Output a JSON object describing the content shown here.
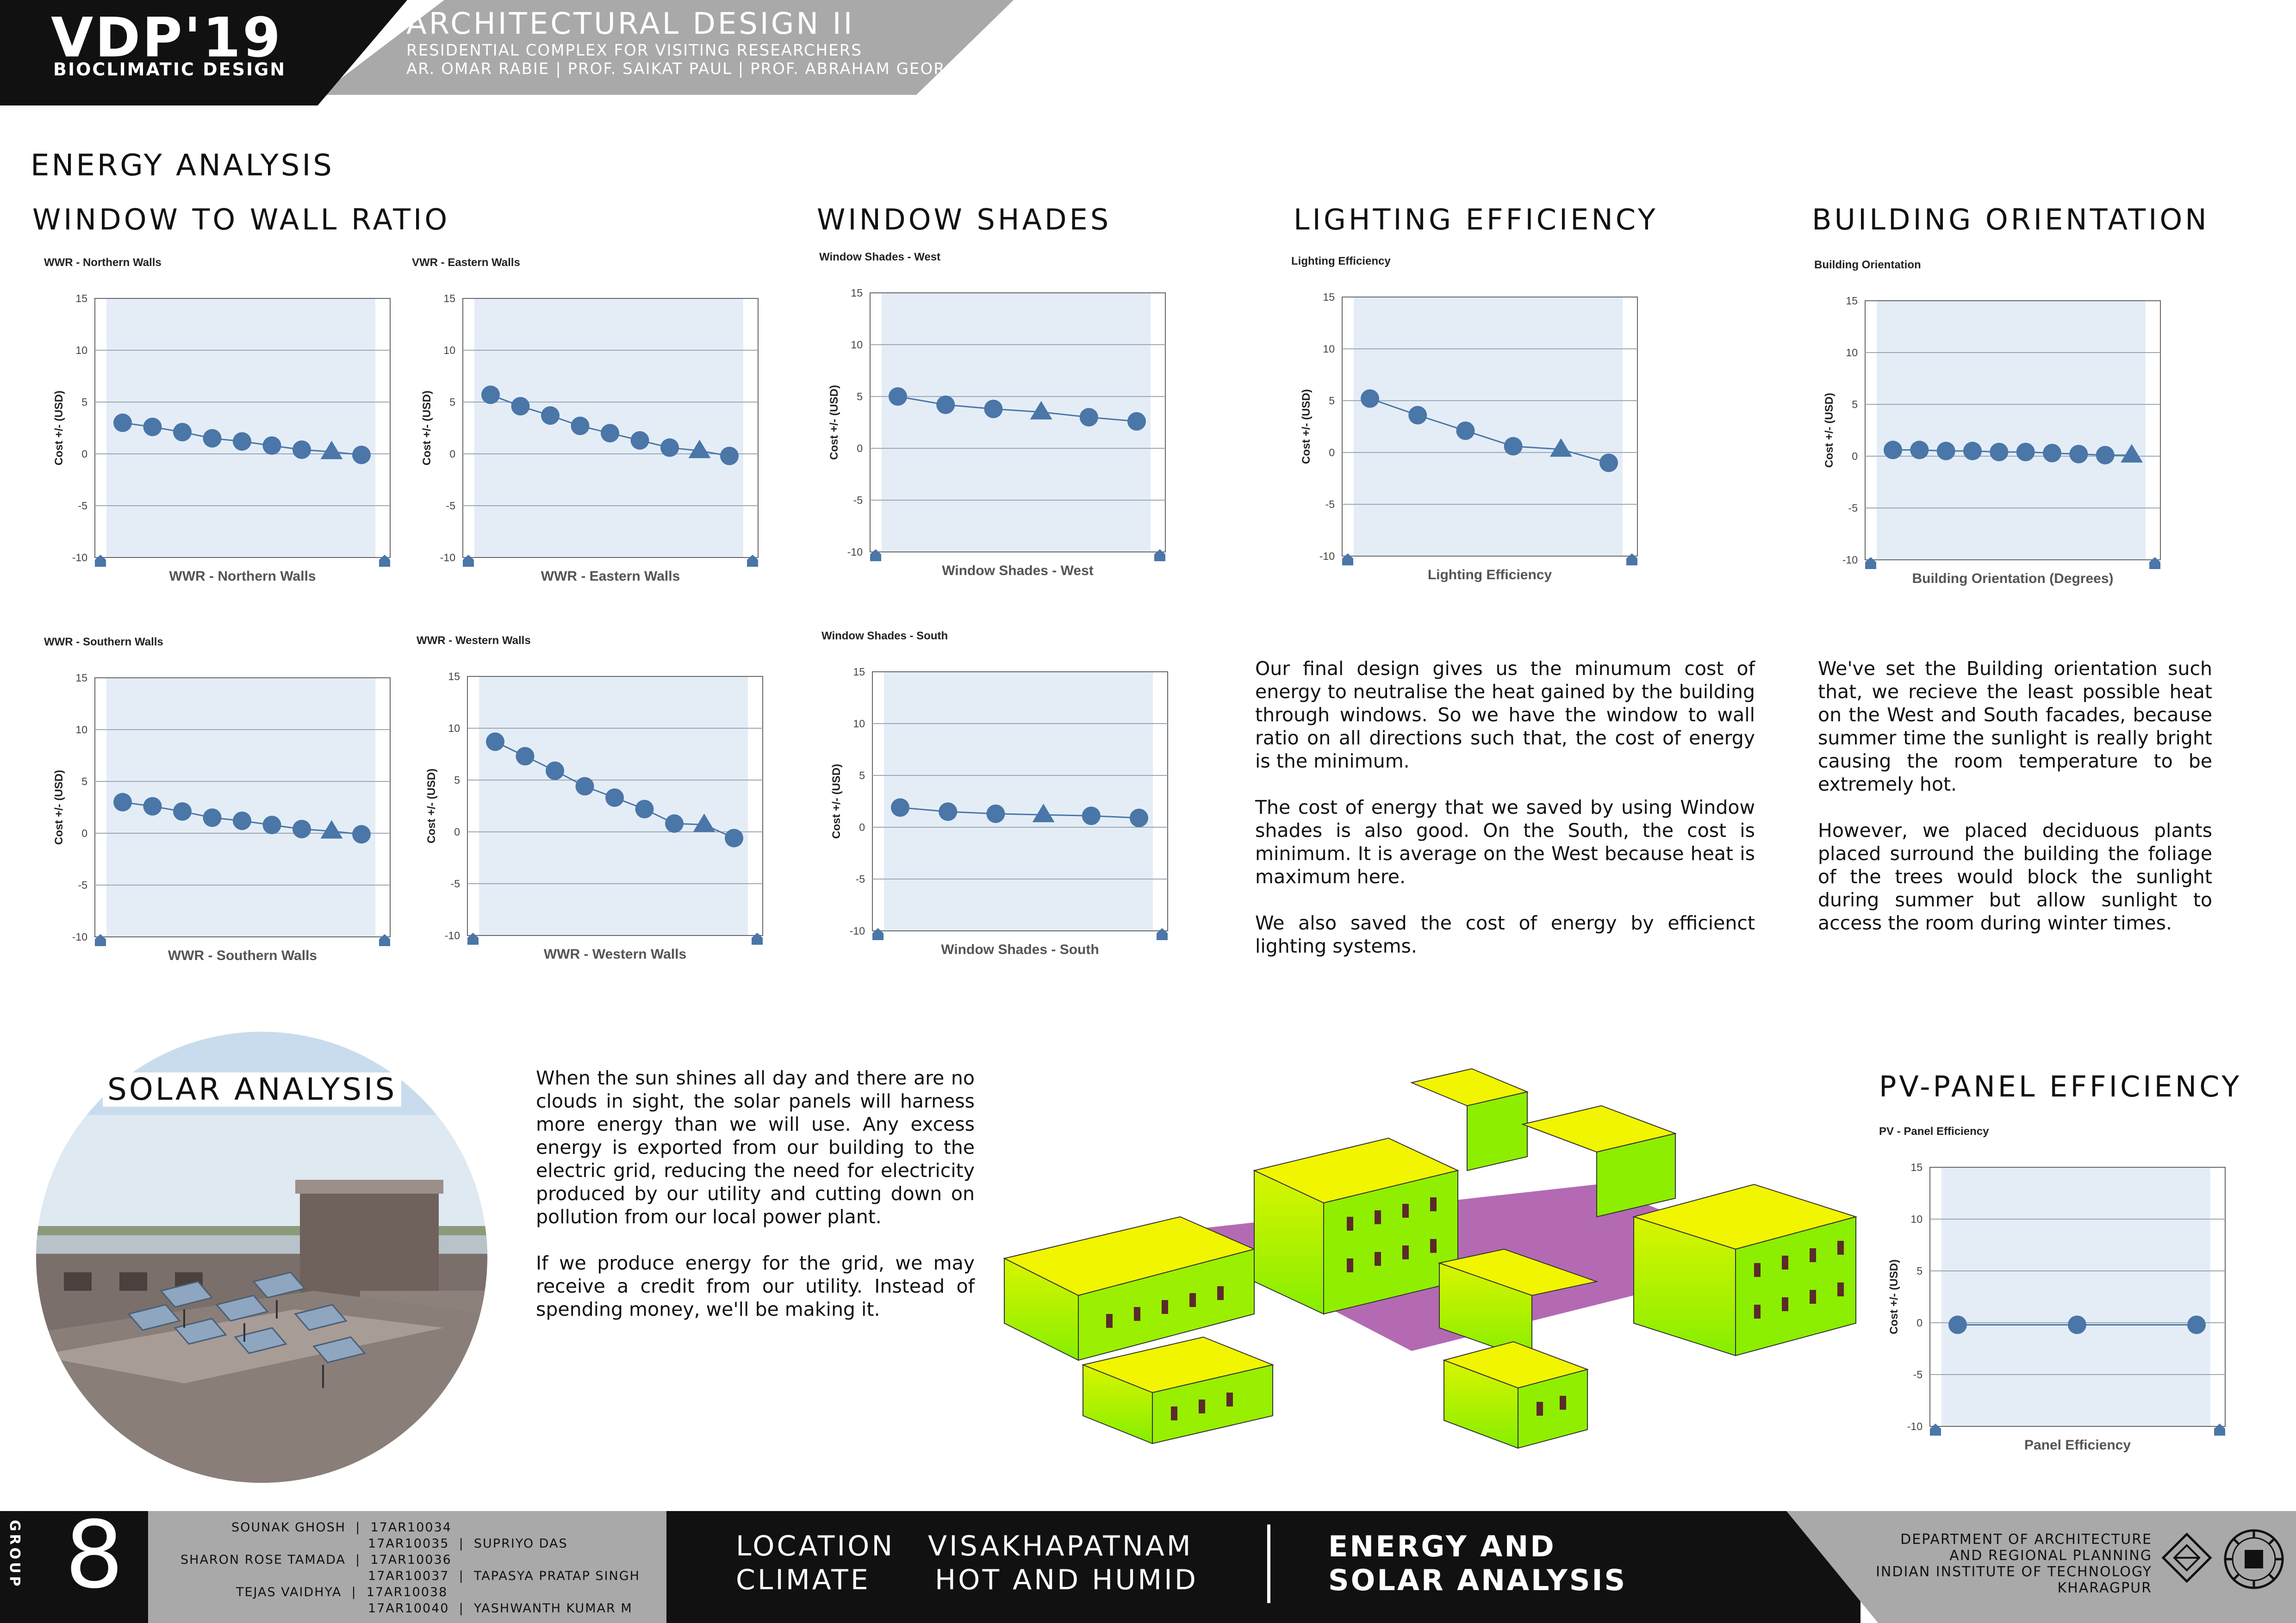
{
  "header": {
    "logo": "VDP'19",
    "logo_sub": "BIOCLIMATIC DESIGN",
    "title": "ARCHITECTURAL DESIGN II",
    "subtitle": "RESIDENTIAL COMPLEX FOR VISITING RESEARCHERS",
    "faculty": "AR. OMAR RABIE | PROF. SAIKAT PAUL | PROF. ABRAHAM GEORGE"
  },
  "energy": {
    "heading": "ENERGY ANALYSIS",
    "wwr_heading": "WINDOW TO WALL RATIO",
    "shades_heading": "WINDOW SHADES",
    "lighting_heading": "LIGHTING EFFICIENCY",
    "orientation_heading": "BUILDING ORIENTATION",
    "lighting_text": [
      "Our final design gives us the minumum cost of energy to neutralise the heat gained by the building through windows. So we have  the window to wall ratio on all directions such that, the cost of energy is the minimum.",
      "The cost of energy that we saved by using Window shades is also good. On the South, the cost is minimum. It is average on the West because heat is maximum here.",
      "We also saved the cost of energy by efficienct lighting systems."
    ],
    "orientation_text": [
      "We've set the Building orientation such that, we recieve the least possible heat on the West and South facades, because summer time the sunlight is really bright causing the room temperature to be extremely hot.",
      "However, we placed deciduous plants placed surround the building the foliage of the trees would block the sunlight during summer but allow sunlight to access the room during winter times."
    ]
  },
  "solar": {
    "heading": "SOLAR ANALYSIS",
    "text": [
      "When the sun shines all day and there are no clouds in sight, the solar panels will harness more energy than we will use. Any excess energy is exported from our building to the electric grid, reducing the need for electricity produced by our utility and cutting down on pollution from our local power plant.",
      "If we produce energy for the grid, we may receive a credit from our utility. Instead of spending money, we'll be making it."
    ],
    "pv_heading": "PV-PANEL EFFICIENCY"
  },
  "chart_data": [
    {
      "id": "wwr-n",
      "type": "scatter",
      "title": "WWR - Northern Walls",
      "xlabel": "WWR - Northern Walls",
      "ylabel": "Cost +/- (USD)",
      "ylim": [
        -10,
        15
      ],
      "yticks": [
        15,
        10,
        5,
        0,
        -5,
        -10
      ],
      "grid": true,
      "values": [
        3.0,
        2.6,
        2.1,
        1.5,
        1.2,
        0.8,
        0.4,
        0.2,
        -0.1
      ],
      "marker_last": "triangle",
      "triangle_index": 7
    },
    {
      "id": "wwr-e",
      "type": "scatter",
      "title": "VWR - Eastern Walls",
      "xlabel": "WWR - Eastern Walls",
      "ylabel": "Cost +/- (USD)",
      "ylim": [
        -10,
        15
      ],
      "yticks": [
        15,
        10,
        5,
        0,
        -5,
        -10
      ],
      "grid": true,
      "values": [
        5.7,
        4.6,
        3.7,
        2.7,
        2.0,
        1.3,
        0.6,
        0.3,
        -0.2
      ],
      "triangle_index": 7
    },
    {
      "id": "ws-w",
      "type": "scatter",
      "title": "Window Shades - West",
      "xlabel": "Window Shades - West",
      "ylabel": "Cost +/- (USD)",
      "ylim": [
        -10,
        15
      ],
      "yticks": [
        15,
        10,
        5,
        0,
        -5,
        -10
      ],
      "grid": true,
      "values": [
        5.0,
        4.2,
        3.8,
        3.5,
        3.0,
        2.6
      ],
      "triangle_index": 3
    },
    {
      "id": "light",
      "type": "scatter",
      "title": "Lighting Efficiency",
      "xlabel": "Lighting Efficiency",
      "ylabel": "Cost +/- (USD)",
      "ylim": [
        -10,
        15
      ],
      "yticks": [
        15,
        10,
        5,
        0,
        -5,
        -10
      ],
      "grid": true,
      "values": [
        5.2,
        3.6,
        2.1,
        0.6,
        0.3,
        -1.0
      ],
      "triangle_index": 4
    },
    {
      "id": "orient",
      "type": "scatter",
      "title": "Building Orientation",
      "xlabel": "Building Orientation (Degrees)",
      "ylabel": "Cost +/- (USD)",
      "ylim": [
        -10,
        15
      ],
      "yticks": [
        15,
        10,
        5,
        0,
        -5,
        -10
      ],
      "grid": true,
      "values": [
        0.6,
        0.6,
        0.5,
        0.5,
        0.4,
        0.4,
        0.3,
        0.2,
        0.1,
        0.1
      ],
      "triangle_index": 9
    },
    {
      "id": "wwr-s",
      "type": "scatter",
      "title": "WWR - Southern Walls",
      "xlabel": "WWR - Southern Walls",
      "ylabel": "Cost +/- (USD)",
      "ylim": [
        -10,
        15
      ],
      "yticks": [
        15,
        10,
        5,
        0,
        -5,
        -10
      ],
      "grid": true,
      "values": [
        3.0,
        2.6,
        2.1,
        1.5,
        1.2,
        0.8,
        0.4,
        0.2,
        -0.1
      ],
      "triangle_index": 7
    },
    {
      "id": "wwr-w",
      "type": "scatter",
      "title": "WWR - Western Walls",
      "xlabel": "WWR - Western Walls",
      "ylabel": "Cost +/- (USD)",
      "ylim": [
        -10,
        15
      ],
      "yticks": [
        15,
        10,
        5,
        0,
        -5,
        -10
      ],
      "grid": true,
      "values": [
        8.7,
        7.3,
        5.9,
        4.4,
        3.3,
        2.2,
        0.8,
        0.7,
        -0.6
      ],
      "triangle_index": 7
    },
    {
      "id": "ws-s",
      "type": "scatter",
      "title": "Window Shades - South",
      "xlabel": "Window Shades - South",
      "ylabel": "Cost +/- (USD)",
      "ylim": [
        -10,
        15
      ],
      "yticks": [
        15,
        10,
        5,
        0,
        -5,
        -10
      ],
      "grid": true,
      "values": [
        1.9,
        1.5,
        1.3,
        1.2,
        1.1,
        0.9
      ],
      "triangle_index": 3
    },
    {
      "id": "pv",
      "type": "scatter",
      "title": "PV - Panel Efficiency",
      "xlabel": "Panel Efficiency",
      "ylabel": "Cost +/- (USD)",
      "ylim": [
        -10,
        15
      ],
      "yticks": [
        15,
        10,
        5,
        0,
        -5,
        -10
      ],
      "grid": true,
      "values": [
        -0.2,
        -0.2,
        -0.2
      ],
      "triangle_index": -1
    }
  ],
  "footer": {
    "group_label": "GROUP",
    "group_number": "8",
    "members": [
      "SOUNAK GHOSH  |  17AR10034",
      "17AR10035  |  SUPRIYO DAS",
      "SHARON ROSE TAMADA  |  17AR10036",
      "17AR10037  |  TAPASYA PRATAP SINGH",
      "TEJAS VAIDHYA  |  17AR10038",
      "17AR10040  |  YASHWANTH KUMAR M"
    ],
    "location_label": "LOCATION",
    "location_value": "VISAKHAPATNAM",
    "climate_label": "CLIMATE",
    "climate_value": "HOT AND HUMID",
    "sheet_title_1": "ENERGY AND",
    "sheet_title_2": "SOLAR ANALYSIS",
    "dept": [
      "DEPARTMENT OF ARCHITECTURE",
      "AND REGIONAL PLANNING",
      "INDIAN INSTITUTE OF TECHNOLOGY",
      "KHARAGPUR"
    ]
  },
  "colors": {
    "plot_bg": "#e4edf6",
    "marker": "#4a76a8",
    "heat_yellow": "#f2f500",
    "heat_green": "#8ff000",
    "heat_magenta": "#8a1a8a"
  }
}
